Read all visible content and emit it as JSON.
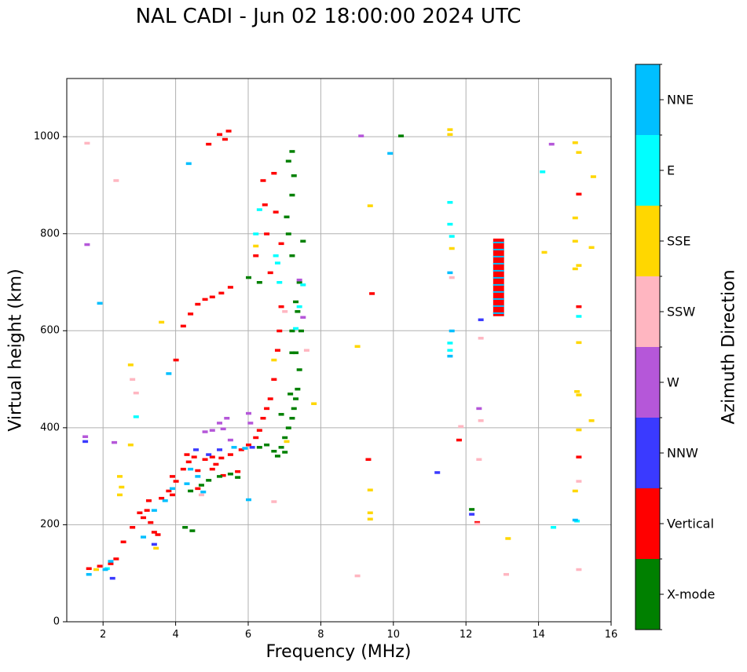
{
  "chart_data": {
    "type": "scatter",
    "title": "NAL CADI - Jun 02 18:00:00 2024 UTC",
    "xlabel": "Frequency (MHz)",
    "ylabel": "Virtual height (km)",
    "xlim": [
      1,
      16
    ],
    "ylim": [
      0,
      1120
    ],
    "xticks": [
      2,
      4,
      6,
      8,
      10,
      12,
      14,
      16
    ],
    "yticks": [
      0,
      200,
      400,
      600,
      800,
      1000
    ],
    "grid": true,
    "colorbar": {
      "label": "Azimuth Direction",
      "categories": [
        {
          "name": "X-mode",
          "color": "#008000"
        },
        {
          "name": "Vertical",
          "color": "#ff0000"
        },
        {
          "name": "NNW",
          "color": "#3a3aff"
        },
        {
          "name": "W",
          "color": "#b557d9"
        },
        {
          "name": "SSW",
          "color": "#ffb6c1"
        },
        {
          "name": "SSE",
          "color": "#ffd700"
        },
        {
          "name": "E",
          "color": "#00ffff"
        },
        {
          "name": "NNE",
          "color": "#00bfff"
        }
      ]
    },
    "series": [
      {
        "name": "Vertical",
        "points": [
          [
            1.6,
            110
          ],
          [
            1.9,
            115
          ],
          [
            2.2,
            120
          ],
          [
            2.35,
            130
          ],
          [
            2.55,
            165
          ],
          [
            2.8,
            195
          ],
          [
            3.1,
            215
          ],
          [
            3.2,
            230
          ],
          [
            3.3,
            205
          ],
          [
            3.4,
            185
          ],
          [
            3.5,
            180
          ],
          [
            3.6,
            255
          ],
          [
            3.8,
            270
          ],
          [
            3.9,
            262
          ],
          [
            4.0,
            290
          ],
          [
            4.2,
            315
          ],
          [
            4.35,
            330
          ],
          [
            4.5,
            340
          ],
          [
            4.6,
            312
          ],
          [
            4.8,
            335
          ],
          [
            5.0,
            340
          ],
          [
            5.1,
            325
          ],
          [
            5.25,
            338
          ],
          [
            5.5,
            345
          ],
          [
            5.8,
            355
          ],
          [
            6.0,
            365
          ],
          [
            6.2,
            380
          ],
          [
            6.3,
            395
          ],
          [
            6.4,
            420
          ],
          [
            6.5,
            440
          ],
          [
            6.6,
            460
          ],
          [
            6.7,
            500
          ],
          [
            6.8,
            560
          ],
          [
            6.85,
            600
          ],
          [
            6.9,
            650
          ],
          [
            6.6,
            720
          ],
          [
            6.5,
            800
          ],
          [
            6.45,
            860
          ],
          [
            6.4,
            910
          ],
          [
            6.7,
            925
          ],
          [
            6.75,
            845
          ],
          [
            4.2,
            610
          ],
          [
            4.4,
            635
          ],
          [
            4.6,
            655
          ],
          [
            4.8,
            665
          ],
          [
            5.0,
            670
          ],
          [
            5.25,
            678
          ],
          [
            5.5,
            690
          ],
          [
            5.2,
            1005
          ],
          [
            5.35,
            995
          ],
          [
            4.9,
            985
          ],
          [
            5.45,
            1012
          ],
          [
            4.0,
            540
          ],
          [
            3.9,
            300
          ],
          [
            3.25,
            250
          ],
          [
            3.0,
            225
          ],
          [
            4.6,
            275
          ],
          [
            4.3,
            345
          ],
          [
            5.0,
            315
          ],
          [
            5.3,
            302
          ],
          [
            9.3,
            335
          ],
          [
            9.4,
            677
          ],
          [
            11.8,
            375
          ],
          [
            12.3,
            205
          ],
          [
            15.1,
            882
          ],
          [
            15.1,
            650
          ],
          [
            15.1,
            340
          ],
          [
            5.7,
            310
          ],
          [
            6.9,
            780
          ],
          [
            6.2,
            755
          ]
        ]
      },
      {
        "name": "X-mode",
        "points": [
          [
            6.3,
            360
          ],
          [
            6.5,
            365
          ],
          [
            6.7,
            352
          ],
          [
            6.9,
            360
          ],
          [
            7.0,
            380
          ],
          [
            7.1,
            400
          ],
          [
            7.2,
            420
          ],
          [
            7.25,
            440
          ],
          [
            7.3,
            460
          ],
          [
            7.35,
            480
          ],
          [
            7.4,
            520
          ],
          [
            7.3,
            555
          ],
          [
            7.2,
            600
          ],
          [
            7.3,
            660
          ],
          [
            7.4,
            700
          ],
          [
            7.2,
            755
          ],
          [
            7.1,
            800
          ],
          [
            7.05,
            835
          ],
          [
            7.2,
            880
          ],
          [
            7.25,
            920
          ],
          [
            7.2,
            970
          ],
          [
            7.0,
            350
          ],
          [
            6.8,
            342
          ],
          [
            5.7,
            298
          ],
          [
            5.5,
            305
          ],
          [
            5.2,
            300
          ],
          [
            4.9,
            292
          ],
          [
            4.7,
            282
          ],
          [
            4.4,
            270
          ],
          [
            4.25,
            195
          ],
          [
            4.45,
            188
          ],
          [
            6.0,
            710
          ],
          [
            6.3,
            700
          ],
          [
            7.5,
            785
          ],
          [
            7.1,
            950
          ],
          [
            10.2,
            1002
          ],
          [
            12.15,
            232
          ],
          [
            7.2,
            555
          ],
          [
            7.35,
            640
          ],
          [
            7.45,
            600
          ],
          [
            6.9,
            428
          ],
          [
            7.15,
            470
          ]
        ]
      },
      {
        "name": "NNW",
        "points": [
          [
            1.5,
            372
          ],
          [
            2.25,
            90
          ],
          [
            3.4,
            160
          ],
          [
            5.2,
            355
          ],
          [
            4.9,
            345
          ],
          [
            11.2,
            308
          ],
          [
            12.15,
            222
          ],
          [
            12.4,
            623
          ],
          [
            4.55,
            355
          ],
          [
            6.1,
            360
          ]
        ]
      },
      {
        "name": "W",
        "points": [
          [
            5.4,
            420
          ],
          [
            5.2,
            410
          ],
          [
            5.0,
            395
          ],
          [
            4.8,
            392
          ],
          [
            5.5,
            375
          ],
          [
            6.0,
            430
          ],
          [
            6.05,
            410
          ],
          [
            7.4,
            705
          ],
          [
            7.5,
            628
          ],
          [
            9.1,
            1002
          ],
          [
            12.35,
            440
          ],
          [
            14.35,
            985
          ],
          [
            1.5,
            382
          ],
          [
            1.55,
            778
          ],
          [
            2.3,
            370
          ],
          [
            5.3,
            398
          ]
        ]
      },
      {
        "name": "SSW",
        "points": [
          [
            2.9,
            472
          ],
          [
            2.8,
            500
          ],
          [
            4.7,
            262
          ],
          [
            6.7,
            248
          ],
          [
            12.4,
            415
          ],
          [
            12.4,
            585
          ],
          [
            12.35,
            335
          ],
          [
            12.3,
            202
          ],
          [
            15.1,
            290
          ],
          [
            15.1,
            108
          ],
          [
            13.1,
            98
          ],
          [
            9.0,
            95
          ],
          [
            11.6,
            710
          ],
          [
            11.85,
            403
          ],
          [
            1.55,
            987
          ],
          [
            2.35,
            910
          ],
          [
            7.0,
            640
          ],
          [
            7.6,
            560
          ]
        ]
      },
      {
        "name": "SSE",
        "points": [
          [
            2.45,
            300
          ],
          [
            2.5,
            278
          ],
          [
            2.45,
            262
          ],
          [
            3.6,
            618
          ],
          [
            2.75,
            530
          ],
          [
            2.75,
            365
          ],
          [
            1.8,
            108
          ],
          [
            3.45,
            152
          ],
          [
            6.2,
            775
          ],
          [
            7.8,
            450
          ],
          [
            9.0,
            568
          ],
          [
            9.35,
            858
          ],
          [
            9.35,
            272
          ],
          [
            9.35,
            225
          ],
          [
            9.35,
            212
          ],
          [
            13.15,
            172
          ],
          [
            14.15,
            762
          ],
          [
            15.0,
            988
          ],
          [
            15.1,
            968
          ],
          [
            15.0,
            833
          ],
          [
            15.0,
            785
          ],
          [
            15.1,
            735
          ],
          [
            15.0,
            728
          ],
          [
            15.1,
            576
          ],
          [
            15.05,
            475
          ],
          [
            15.1,
            468
          ],
          [
            15.1,
            396
          ],
          [
            15.0,
            270
          ],
          [
            15.5,
            918
          ],
          [
            15.45,
            772
          ],
          [
            15.45,
            415
          ],
          [
            11.55,
            1015
          ],
          [
            11.55,
            1005
          ],
          [
            11.6,
            770
          ],
          [
            6.7,
            540
          ],
          [
            7.05,
            372
          ]
        ]
      },
      {
        "name": "E",
        "points": [
          [
            6.8,
            740
          ],
          [
            6.75,
            755
          ],
          [
            7.5,
            695
          ],
          [
            7.4,
            650
          ],
          [
            7.3,
            605
          ],
          [
            11.55,
            865
          ],
          [
            11.55,
            820
          ],
          [
            11.6,
            795
          ],
          [
            11.55,
            575
          ],
          [
            11.55,
            560
          ],
          [
            14.1,
            928
          ],
          [
            15.1,
            630
          ],
          [
            14.4,
            195
          ],
          [
            15.05,
            208
          ],
          [
            6.2,
            800
          ],
          [
            6.3,
            850
          ],
          [
            2.1,
            110
          ],
          [
            2.9,
            423
          ],
          [
            6.85,
            700
          ]
        ]
      },
      {
        "name": "NNE",
        "points": [
          [
            4.4,
            315
          ],
          [
            4.6,
            300
          ],
          [
            4.3,
            285
          ],
          [
            3.9,
            275
          ],
          [
            3.7,
            250
          ],
          [
            3.4,
            230
          ],
          [
            3.1,
            175
          ],
          [
            2.2,
            125
          ],
          [
            2.05,
            108
          ],
          [
            1.6,
            98
          ],
          [
            3.8,
            512
          ],
          [
            4.35,
            945
          ],
          [
            6.0,
            252
          ],
          [
            9.9,
            966
          ],
          [
            11.55,
            720
          ],
          [
            11.6,
            600
          ],
          [
            11.55,
            548
          ],
          [
            5.6,
            360
          ],
          [
            5.9,
            358
          ],
          [
            4.75,
            268
          ],
          [
            1.9,
            657
          ],
          [
            15.0,
            210
          ]
        ]
      }
    ],
    "rectangles": [
      {
        "name": "Vertical",
        "x": [
          12.75,
          13.05
        ],
        "y": [
          630,
          790
        ]
      }
    ]
  }
}
